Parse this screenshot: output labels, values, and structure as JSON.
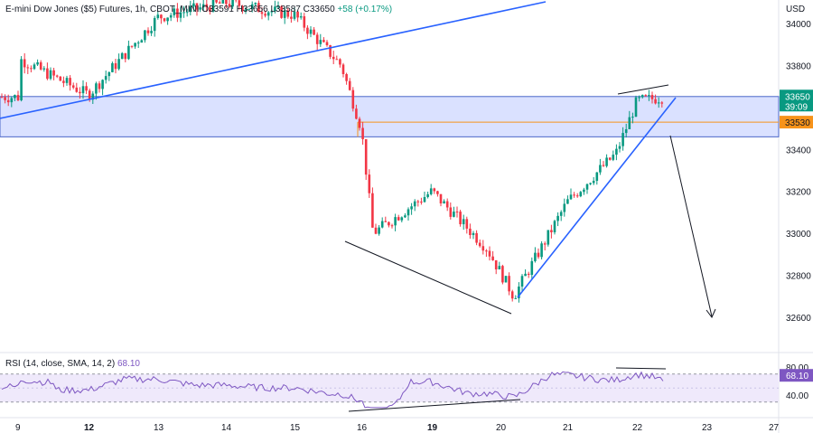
{
  "legend": {
    "symbol": "E-mini Dow Jones ($5) Futures, 1h, CBOT_MINI",
    "open": "O33591",
    "high": "H33656",
    "low": "L33587",
    "close": "C33650",
    "change": "+58 (+0.17%)"
  },
  "currency": "USD",
  "rsi_legend": {
    "text": "RSI (14, close, SMA, 14, 2)",
    "value": "68.10"
  },
  "badges": {
    "price": "33650",
    "countdown": "39:09",
    "level": "33530",
    "rsi": "68.10"
  },
  "colors": {
    "up": "#089981",
    "down": "#f23645",
    "trendline": "#2962ff",
    "zone_fill": "#d6deff",
    "level": "#f7931a",
    "rsi_line": "#7e57c2",
    "rsi_band": "#efe9fb"
  },
  "chart_data": [
    {
      "type": "candlestick",
      "title": "E-mini Dow Jones ($5) Futures, 1h, CBOT_MINI",
      "x_ticks": [
        "9",
        "12",
        "13",
        "14",
        "15",
        "16",
        "19",
        "20",
        "21",
        "22",
        "23",
        "27"
      ],
      "y_ticks": [
        34000,
        33800,
        33600,
        33400,
        33200,
        33000,
        32800,
        32600
      ],
      "ylim": [
        32480,
        34110
      ],
      "last_price": 33650,
      "horizontal_level": 33530,
      "resistance_zone": [
        33460,
        33652
      ],
      "ohlc_legend": {
        "open": 33591,
        "high": 33656,
        "low": 33587,
        "close": 33650
      },
      "approx_close_path": [
        [
          "9",
          33830
        ],
        [
          "12",
          33660
        ],
        [
          "13",
          34030
        ],
        [
          "14",
          34100
        ],
        [
          "15",
          34040
        ],
        [
          "15.7",
          33800
        ],
        [
          "16",
          33500
        ],
        [
          "16.5",
          33000
        ],
        [
          "19",
          33200
        ],
        [
          "19.8",
          32930
        ],
        [
          "20.2",
          32700
        ],
        [
          "21",
          33150
        ],
        [
          "21.7",
          33380
        ],
        [
          "22",
          33630
        ],
        [
          "22.4",
          33650
        ]
      ]
    },
    {
      "type": "line",
      "title": "RSI (14, close, SMA, 14, 2)",
      "y_ticks": [
        80,
        40
      ],
      "ylim": [
        20,
        95
      ],
      "bands": [
        30,
        70
      ],
      "last_value": 68.1
    }
  ]
}
